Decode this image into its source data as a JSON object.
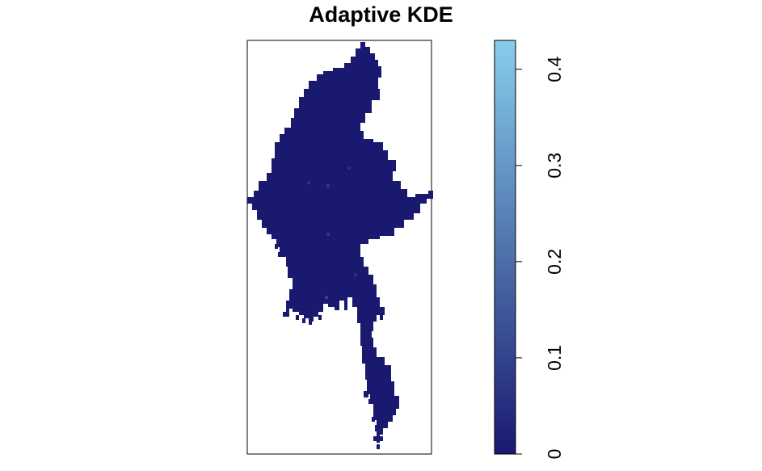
{
  "title": "Adaptive KDE",
  "map": {
    "type": "raster",
    "region_fill": "#191970",
    "hotspots": [
      {
        "value": 0.1
      },
      {
        "value": 0.08
      },
      {
        "value": 0.07
      },
      {
        "value": 0.06
      },
      {
        "value": 0.05
      },
      {
        "value": 0.05
      }
    ]
  },
  "legend": {
    "range": [
      0,
      0.43
    ],
    "ticks": [
      {
        "value": 0,
        "label": "0"
      },
      {
        "value": 0.1,
        "label": "0.1"
      },
      {
        "value": 0.2,
        "label": "0.2"
      },
      {
        "value": 0.3,
        "label": "0.3"
      },
      {
        "value": 0.4,
        "label": "0.4"
      }
    ],
    "color_low": "#191970",
    "color_high": "#87CEEB"
  }
}
